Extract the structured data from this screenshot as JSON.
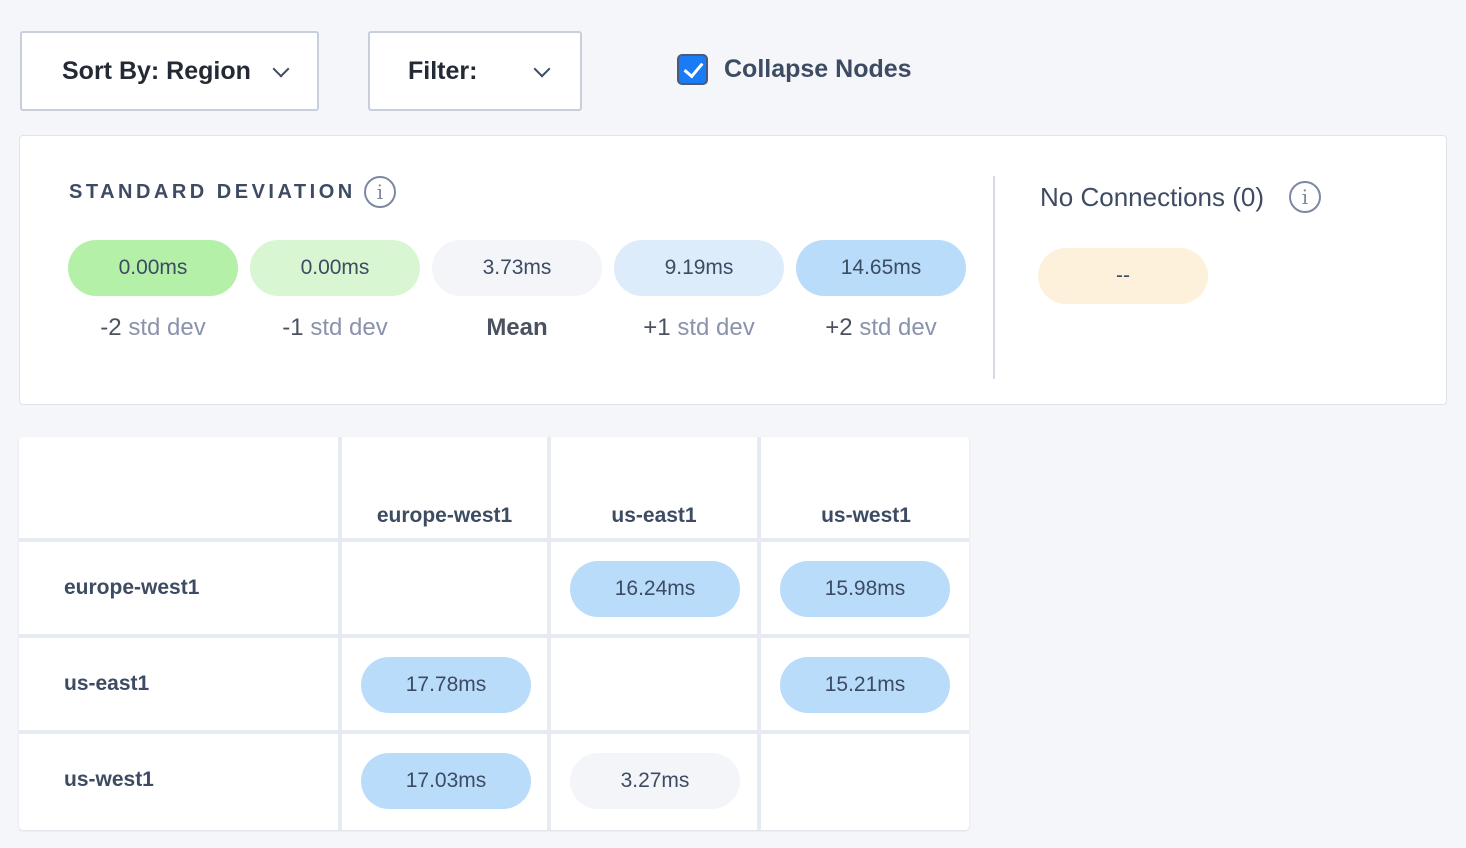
{
  "toolbar": {
    "sort_label": "Sort By: Region",
    "filter_label": "Filter:",
    "collapse_label": "Collapse Nodes",
    "collapse_checked": true
  },
  "std_dev": {
    "title": "STANDARD DEVIATION",
    "items": [
      {
        "value": "0.00ms",
        "sign": "-2",
        "label": "std dev",
        "color": "#b4f0a8"
      },
      {
        "value": "0.00ms",
        "sign": "-1",
        "label": "std dev",
        "color": "#d9f6d3"
      },
      {
        "value": "3.73ms",
        "sign": "Mean",
        "label": "",
        "color": "#f3f5f9"
      },
      {
        "value": "9.19ms",
        "sign": "+1",
        "label": "std dev",
        "color": "#ddecfb"
      },
      {
        "value": "14.65ms",
        "sign": "+2",
        "label": "std dev",
        "color": "#b9dcfb"
      }
    ]
  },
  "no_connections": {
    "title": "No Connections (0)",
    "value": "--",
    "color": "#fdf1dc"
  },
  "matrix": {
    "columns": [
      "europe-west1",
      "us-east1",
      "us-west1"
    ],
    "rows": [
      {
        "name": "europe-west1",
        "cells": [
          null,
          {
            "value": "16.24ms",
            "color": "#b9dcfb"
          },
          {
            "value": "15.98ms",
            "color": "#b9dcfb"
          }
        ]
      },
      {
        "name": "us-east1",
        "cells": [
          {
            "value": "17.78ms",
            "color": "#b9dcfb"
          },
          null,
          {
            "value": "15.21ms",
            "color": "#b9dcfb"
          }
        ]
      },
      {
        "name": "us-west1",
        "cells": [
          {
            "value": "17.03ms",
            "color": "#b9dcfb"
          },
          {
            "value": "3.27ms",
            "color": "#f3f5f9"
          },
          null
        ]
      }
    ]
  }
}
